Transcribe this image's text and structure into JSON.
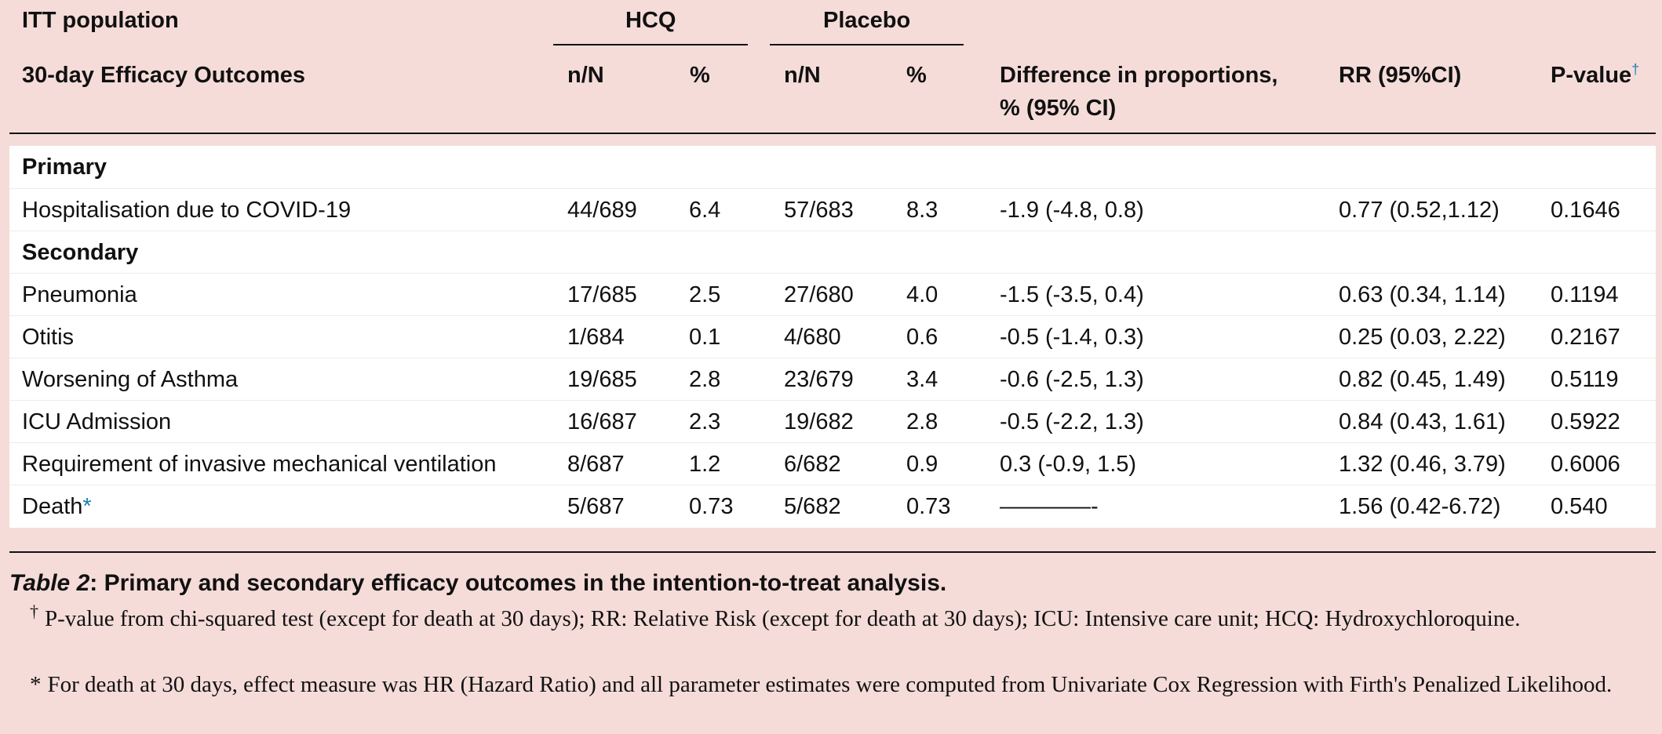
{
  "header": {
    "population": "ITT population",
    "outcomes": "30-day Efficacy Outcomes",
    "group_hcq": "HCQ",
    "group_placebo": "Placebo",
    "col_nN_hcq": "n/N",
    "col_pct_hcq": "%",
    "col_nN_placebo": "n/N",
    "col_pct_placebo": "%",
    "col_diff_line1": "Difference in proportions,",
    "col_diff_line2": "% (95% CI)",
    "col_rr": "RR (95%CI)",
    "col_p": "P-value",
    "col_p_mark": "†"
  },
  "rows": [
    {
      "label": "Primary"
    },
    {
      "label": "Hospitalisation due to COVID-19",
      "hcq_nN": "44/689",
      "hcq_pct": "6.4",
      "pl_nN": "57/683",
      "pl_pct": "8.3",
      "diff": "-1.9 (-4.8, 0.8)",
      "rr": "0.77 (0.52,1.12)",
      "p": "0.1646"
    },
    {
      "label": "Secondary"
    },
    {
      "label": "Pneumonia",
      "hcq_nN": "17/685",
      "hcq_pct": "2.5",
      "pl_nN": "27/680",
      "pl_pct": "4.0",
      "diff": "-1.5 (-3.5, 0.4)",
      "rr": "0.63 (0.34, 1.14)",
      "p": "0.1194"
    },
    {
      "label": "Otitis",
      "hcq_nN": "1/684",
      "hcq_pct": "0.1",
      "pl_nN": "4/680",
      "pl_pct": "0.6",
      "diff": "-0.5 (-1.4, 0.3)",
      "rr": "0.25 (0.03, 2.22)",
      "p": "0.2167"
    },
    {
      "label": "Worsening of Asthma",
      "hcq_nN": "19/685",
      "hcq_pct": "2.8",
      "pl_nN": "23/679",
      "pl_pct": "3.4",
      "diff": "-0.6 (-2.5, 1.3)",
      "rr": "0.82 (0.45, 1.49)",
      "p": "0.5119"
    },
    {
      "label": "ICU Admission",
      "hcq_nN": "16/687",
      "hcq_pct": "2.3",
      "pl_nN": "19/682",
      "pl_pct": "2.8",
      "diff": "-0.5 (-2.2, 1.3)",
      "rr": "0.84 (0.43, 1.61)",
      "p": "0.5922"
    },
    {
      "label": "Requirement of invasive mechanical ventilation",
      "hcq_nN": "8/687",
      "hcq_pct": "1.2",
      "pl_nN": "6/682",
      "pl_pct": "0.9",
      "diff": "0.3 (-0.9, 1.5)",
      "rr": "1.32 (0.46, 3.79)",
      "p": "0.6006"
    },
    {
      "label": "Death",
      "hcq_nN": "5/687",
      "hcq_pct": "0.73",
      "pl_nN": "5/682",
      "pl_pct": "0.73",
      "diff": "————-",
      "rr": "1.56 (0.42-6.72)",
      "p": "0.540"
    }
  ],
  "death_mark": "*",
  "caption": {
    "label": "Table 2",
    "text": ": Primary and secondary efficacy outcomes in the intention-to-treat analysis."
  },
  "footnotes": {
    "dagger_symbol": "†",
    "dagger_text": "P-value from chi-squared test (except for death at 30 days); RR: Relative Risk (except for death at 30 days); ICU: Intensive care unit; HCQ: Hydroxychloroquine.",
    "star_symbol": "*",
    "star_text": "For death at 30 days, effect measure was HR (Hazard Ratio) and all parameter estimates were computed from Univariate Cox Regression with Firth's Penalized Likelihood."
  }
}
